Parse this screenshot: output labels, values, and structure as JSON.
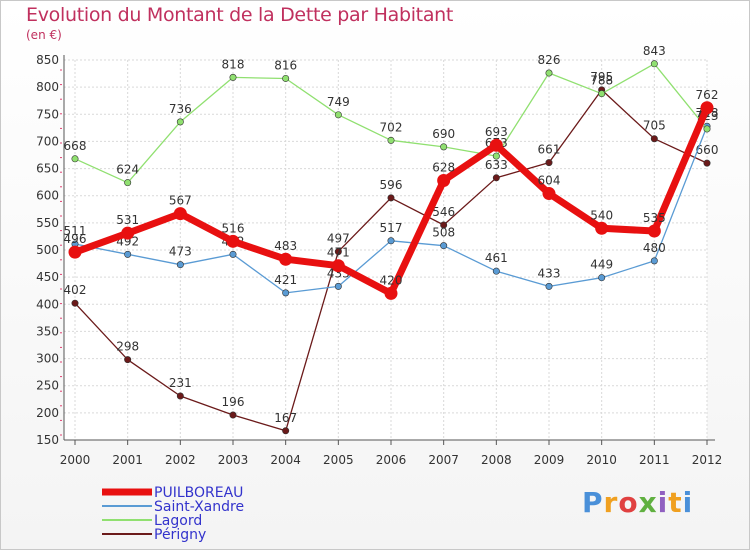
{
  "title": "Evolution du Montant de la Dette par Habitant",
  "unit": "(en €)",
  "logo": {
    "letters": [
      "P",
      "r",
      "o",
      "x",
      "i",
      "t",
      "i"
    ],
    "colors": [
      "#4a90d9",
      "#f0a020",
      "#e04040",
      "#60b040",
      "#9060c0",
      "#f0a020",
      "#4a90d9"
    ]
  },
  "chart_data": {
    "type": "line",
    "title": "Evolution du Montant de la Dette par Habitant",
    "ylabel": "(en €)",
    "x": [
      "2000",
      "2001",
      "2002",
      "2003",
      "2004",
      "2005",
      "2006",
      "2007",
      "2008",
      "2009",
      "2010",
      "2011",
      "2012"
    ],
    "ylim": [
      150,
      850
    ],
    "yticks": [
      150,
      200,
      250,
      300,
      350,
      400,
      450,
      500,
      550,
      600,
      650,
      700,
      750,
      800,
      850
    ],
    "grid": true,
    "legend_position": "bottom-left",
    "series": [
      {
        "name": "PUILBOREAU",
        "color": "#e81010",
        "width": 7,
        "values": [
          496,
          531,
          567,
          516,
          483,
          471,
          420,
          628,
          693,
          604,
          540,
          535,
          762
        ]
      },
      {
        "name": "Saint-Xandre",
        "color": "#5a9bd4",
        "width": 1.3,
        "values": [
          511,
          492,
          473,
          492,
          421,
          433,
          517,
          508,
          461,
          433,
          449,
          480,
          728
        ]
      },
      {
        "name": "Lagord",
        "color": "#90e070",
        "width": 1.3,
        "values": [
          668,
          624,
          736,
          818,
          816,
          749,
          702,
          690,
          673,
          826,
          788,
          843,
          723
        ]
      },
      {
        "name": "Périgny",
        "color": "#6b1a1a",
        "width": 1.3,
        "values": [
          402,
          298,
          231,
          196,
          167,
          497,
          596,
          546,
          633,
          661,
          795,
          705,
          660
        ]
      }
    ]
  }
}
